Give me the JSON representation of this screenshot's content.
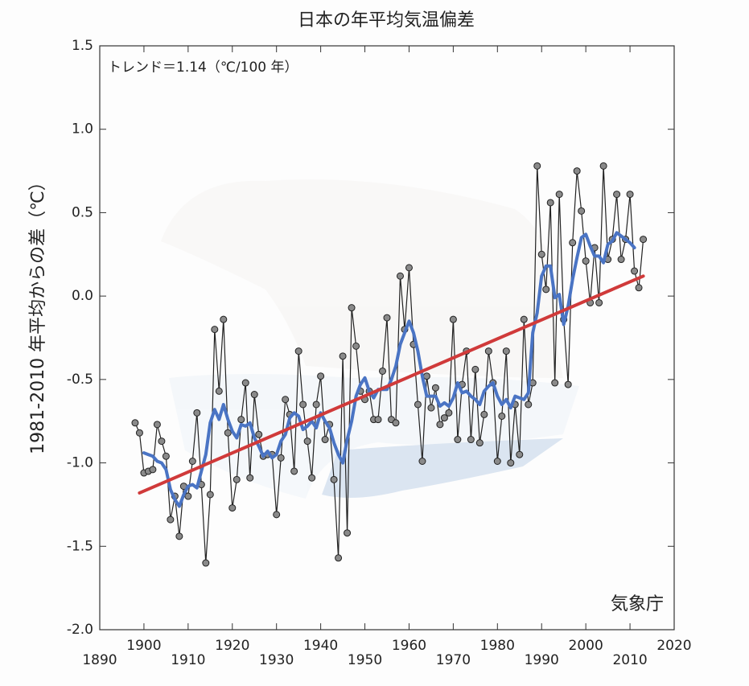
{
  "chart_data": {
    "type": "line",
    "title": "日本の年平均気温偏差",
    "y_label": "1981-2010 年平均からの差（℃）",
    "annotation": "トレンド＝1.14（℃/100 年）",
    "source": "気象庁",
    "xlim": [
      1890,
      2020
    ],
    "xticks": [
      1890,
      1900,
      1910,
      1920,
      1930,
      1940,
      1950,
      1960,
      1970,
      1980,
      1990,
      2000,
      2010,
      2020
    ],
    "ylim": [
      -2.0,
      1.5
    ],
    "yticks": [
      {
        "value": -2.0,
        "label": "-2.0"
      },
      -1.5,
      {
        "value": -1.0,
        "label": "-1.0"
      },
      -0.5,
      {
        "value": 0.0,
        "label": "0.0"
      },
      0.5,
      {
        "value": 1.0,
        "label": "1.0"
      },
      1.5
    ],
    "series": [
      {
        "color": "#222222",
        "marker_color": "#8a8a8a",
        "x": [
          1898,
          1899,
          1900,
          1901,
          1902,
          1903,
          1904,
          1905,
          1906,
          1907,
          1908,
          1909,
          1910,
          1911,
          1912,
          1913,
          1914,
          1915,
          1916,
          1917,
          1918,
          1919,
          1920,
          1921,
          1922,
          1923,
          1924,
          1925,
          1926,
          1927,
          1928,
          1929,
          1930,
          1931,
          1932,
          1933,
          1934,
          1935,
          1936,
          1937,
          1938,
          1939,
          1940,
          1941,
          1942,
          1943,
          1944,
          1945,
          1946,
          1947,
          1948,
          1949,
          1950,
          1951,
          1952,
          1953,
          1954,
          1955,
          1956,
          1957,
          1958,
          1959,
          1960,
          1961,
          1962,
          1963,
          1964,
          1965,
          1966,
          1967,
          1968,
          1969,
          1970,
          1971,
          1972,
          1973,
          1974,
          1975,
          1976,
          1977,
          1978,
          1979,
          1980,
          1981,
          1982,
          1983,
          1984,
          1985,
          1986,
          1987,
          1988,
          1989,
          1990,
          1991,
          1992,
          1993,
          1994,
          1995,
          1996,
          1997,
          1998,
          1999,
          2000,
          2001,
          2002,
          2003,
          2004,
          2005,
          2006,
          2007,
          2008,
          2009,
          2010,
          2011,
          2012,
          2013
        ],
        "values": [
          -0.76,
          -0.82,
          -1.06,
          -1.05,
          -1.04,
          -0.77,
          -0.87,
          -0.96,
          -1.34,
          -1.2,
          -1.44,
          -1.14,
          -1.2,
          -0.99,
          -0.7,
          -1.13,
          -1.6,
          -1.19,
          -0.2,
          -0.57,
          -0.14,
          -0.82,
          -1.27,
          -1.1,
          -0.74,
          -0.52,
          -1.09,
          -0.59,
          -0.83,
          -0.96,
          -0.95,
          -0.95,
          -1.31,
          -0.97,
          -0.62,
          -0.71,
          -1.05,
          -0.33,
          -0.65,
          -0.87,
          -1.09,
          -0.65,
          -0.48,
          -0.86,
          -0.77,
          -1.1,
          -1.57,
          -0.36,
          -1.42,
          -0.07,
          -0.3,
          -0.57,
          -0.62,
          -0.57,
          -0.74,
          -0.74,
          -0.45,
          -0.13,
          -0.74,
          -0.76,
          0.12,
          -0.2,
          0.17,
          -0.29,
          -0.65,
          -0.99,
          -0.48,
          -0.67,
          -0.55,
          -0.77,
          -0.73,
          -0.7,
          -0.14,
          -0.86,
          -0.53,
          -0.33,
          -0.86,
          -0.44,
          -0.88,
          -0.71,
          -0.33,
          -0.52,
          -0.99,
          -0.72,
          -0.33,
          -1.0,
          -0.65,
          -0.95,
          -0.14,
          -0.65,
          -0.52,
          0.78,
          0.25,
          0.04,
          0.56,
          -0.52,
          0.61,
          -0.14,
          -0.53,
          0.32,
          0.75,
          0.51,
          0.21,
          -0.04,
          0.29,
          -0.04,
          0.78,
          0.22,
          0.34,
          0.61,
          0.22,
          0.34,
          0.61,
          0.15,
          0.05,
          0.34
        ]
      },
      {
        "color": "#4a74c4",
        "x": [
          1900,
          1901,
          1902,
          1903,
          1904,
          1905,
          1906,
          1907,
          1908,
          1909,
          1910,
          1911,
          1912,
          1913,
          1914,
          1915,
          1916,
          1917,
          1918,
          1919,
          1920,
          1921,
          1922,
          1923,
          1924,
          1925,
          1926,
          1927,
          1928,
          1929,
          1930,
          1931,
          1932,
          1933,
          1934,
          1935,
          1936,
          1937,
          1938,
          1939,
          1940,
          1941,
          1942,
          1943,
          1944,
          1945,
          1946,
          1947,
          1948,
          1949,
          1950,
          1951,
          1952,
          1953,
          1954,
          1955,
          1956,
          1957,
          1958,
          1959,
          1960,
          1961,
          1962,
          1963,
          1964,
          1965,
          1966,
          1967,
          1968,
          1969,
          1970,
          1971,
          1972,
          1973,
          1974,
          1975,
          1976,
          1977,
          1978,
          1979,
          1980,
          1981,
          1982,
          1983,
          1984,
          1985,
          1986,
          1987,
          1988,
          1989,
          1990,
          1991,
          1992,
          1993,
          1994,
          1995,
          1996,
          1997,
          1998,
          1999,
          2000,
          2001,
          2002,
          2003,
          2004,
          2005,
          2006,
          2007,
          2008,
          2009,
          2010,
          2011
        ],
        "values": [
          -0.94,
          -0.95,
          -0.96,
          -0.99,
          -1.0,
          -1.04,
          -1.16,
          -1.22,
          -1.26,
          -1.19,
          -1.14,
          -1.13,
          -1.15,
          -1.05,
          -0.95,
          -0.76,
          -0.68,
          -0.74,
          -0.65,
          -0.74,
          -0.81,
          -0.85,
          -0.77,
          -0.78,
          -0.76,
          -0.85,
          -0.9,
          -0.96,
          -0.93,
          -0.97,
          -0.95,
          -0.87,
          -0.83,
          -0.73,
          -0.7,
          -0.72,
          -0.8,
          -0.78,
          -0.75,
          -0.79,
          -0.7,
          -0.75,
          -0.79,
          -0.88,
          -0.95,
          -1.0,
          -0.86,
          -0.75,
          -0.6,
          -0.53,
          -0.49,
          -0.57,
          -0.61,
          -0.56,
          -0.56,
          -0.56,
          -0.5,
          -0.42,
          -0.29,
          -0.22,
          -0.15,
          -0.22,
          -0.33,
          -0.48,
          -0.6,
          -0.6,
          -0.6,
          -0.66,
          -0.64,
          -0.66,
          -0.61,
          -0.52,
          -0.58,
          -0.57,
          -0.6,
          -0.62,
          -0.65,
          -0.57,
          -0.54,
          -0.52,
          -0.6,
          -0.65,
          -0.62,
          -0.67,
          -0.6,
          -0.61,
          -0.62,
          -0.58,
          -0.22,
          -0.1,
          0.12,
          0.18,
          0.18,
          -0.01,
          0.01,
          -0.17,
          -0.06,
          0.1,
          0.23,
          0.35,
          0.37,
          0.3,
          0.24,
          0.24,
          0.2,
          0.31,
          0.33,
          0.38,
          0.36,
          0.34,
          0.32,
          0.29
        ]
      },
      {
        "color": "#d03a3a",
        "x": [
          1899,
          2013
        ],
        "values": [
          -1.18,
          0.12
        ]
      }
    ]
  }
}
